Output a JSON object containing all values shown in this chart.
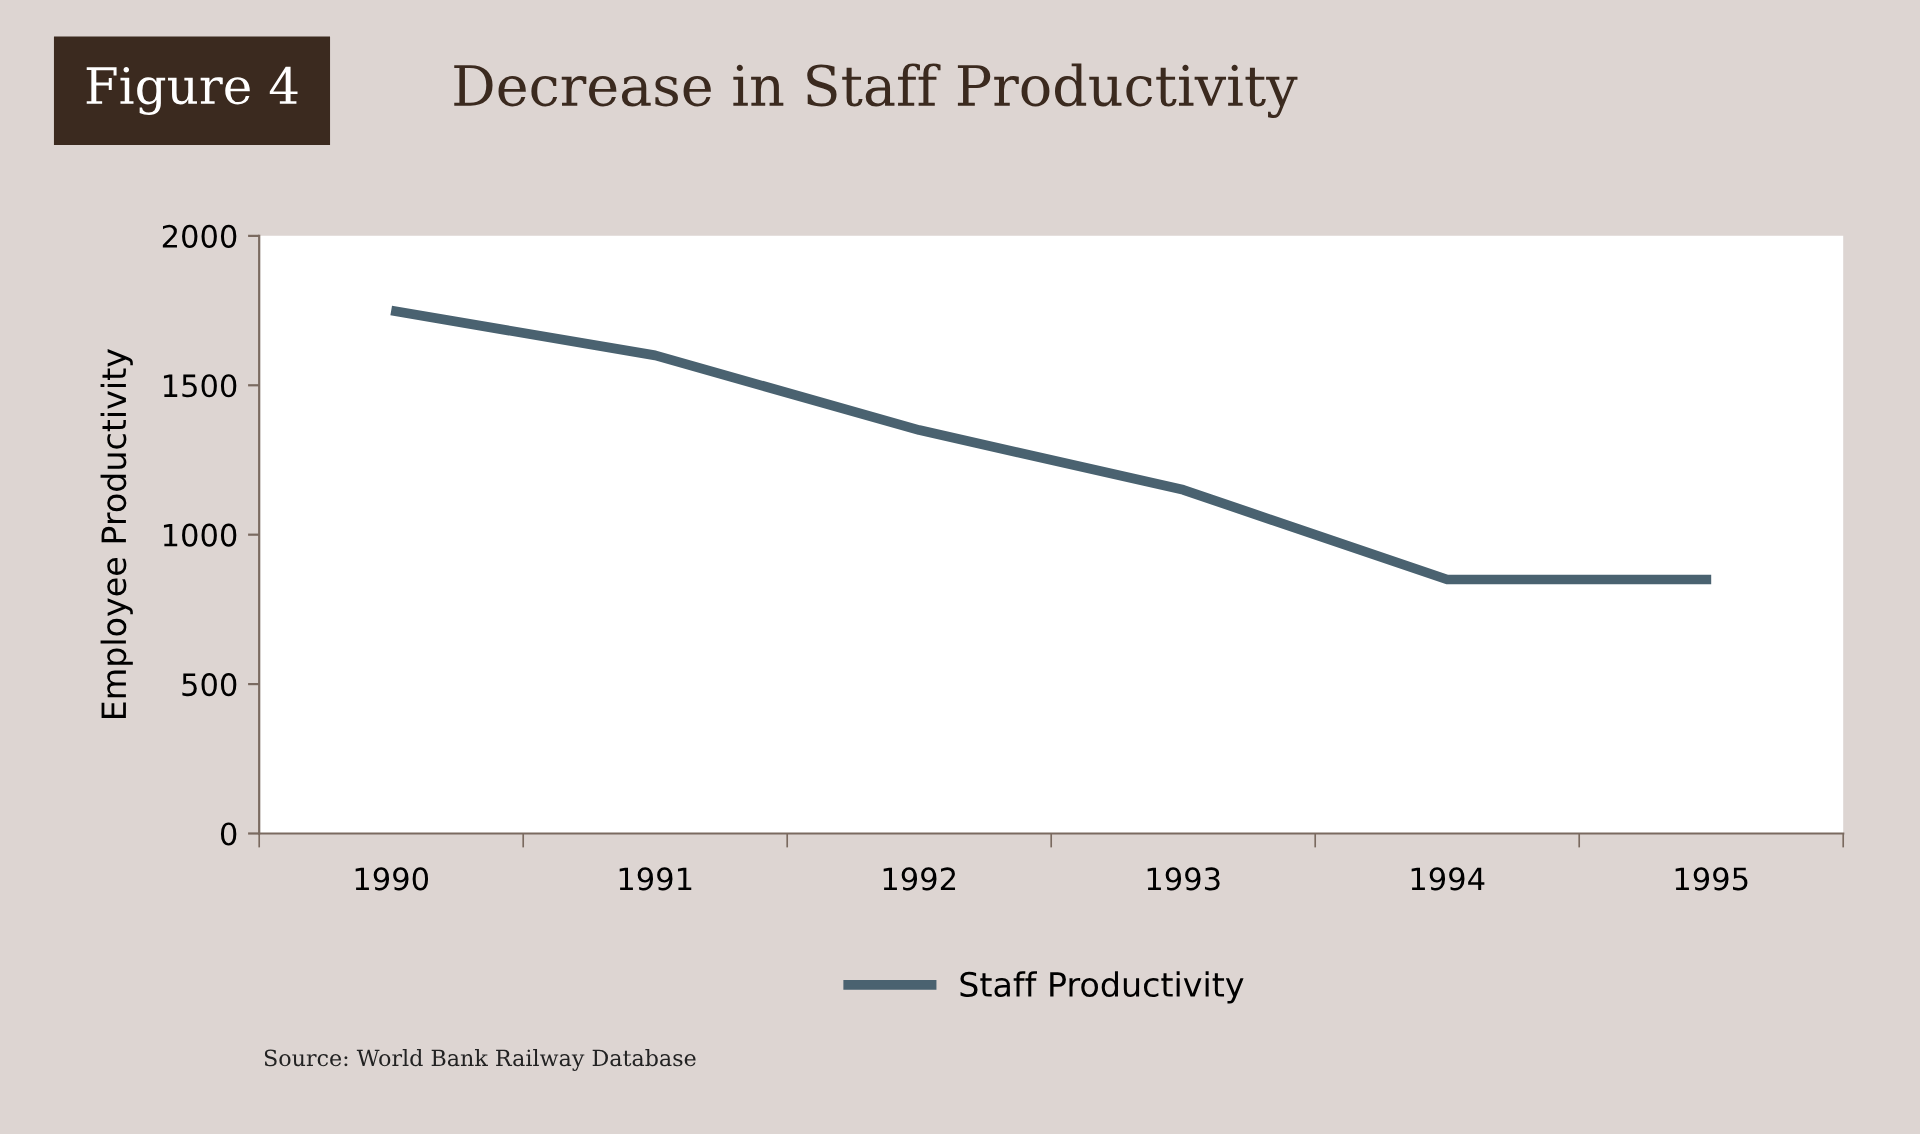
{
  "chart_data": {
    "type": "line",
    "title": "Decrease in Staff Productivity",
    "ylabel": "Employee Productivity",
    "categories": [
      "1990",
      "1991",
      "1992",
      "1993",
      "1994",
      "1995"
    ],
    "series": [
      {
        "name": "Staff Productivity",
        "color": "#4a6270",
        "values": [
          1750,
          1600,
          1350,
          1150,
          850,
          850
        ]
      }
    ],
    "ylim": [
      0,
      2000
    ],
    "yticks": [
      0,
      500,
      1000,
      1500,
      2000
    ],
    "grid": false,
    "legend": "bottom",
    "marker": "none",
    "line_style": "solid",
    "annotations": [
      "Figure 4",
      "Source: World Bank Railway Database"
    ]
  }
}
